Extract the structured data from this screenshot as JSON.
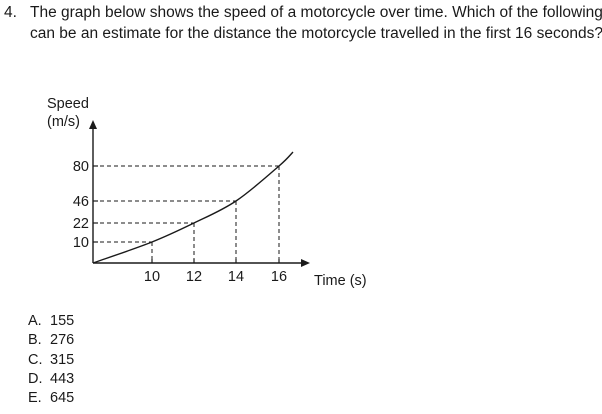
{
  "question": {
    "number": "4.",
    "text_line1": "The graph below shows the speed of a motorcycle over time. Which of the following",
    "text_line2": "can be an estimate for the distance the motorcycle travelled in the first 16 seconds?"
  },
  "chart_data": {
    "type": "line",
    "ylabel_line1": "Speed",
    "ylabel_line2": "(m/s)",
    "xlabel": "Time (s)",
    "x_ticks": [
      "10",
      "12",
      "14",
      "16"
    ],
    "y_ticks": [
      "80",
      "46",
      "22",
      "10"
    ],
    "series": [
      {
        "x": [
          0,
          10,
          12,
          14,
          16
        ],
        "y": [
          0,
          10,
          22,
          46,
          80
        ]
      }
    ],
    "x": [
      10,
      12,
      14,
      16
    ],
    "y": [
      10,
      22,
      46,
      80
    ],
    "dashed_guides": true,
    "grid": false
  },
  "options": [
    {
      "letter": "A.",
      "value": "155"
    },
    {
      "letter": "B.",
      "value": "276"
    },
    {
      "letter": "C.",
      "value": "315"
    },
    {
      "letter": "D.",
      "value": "443"
    },
    {
      "letter": "E.",
      "value": "645"
    }
  ]
}
